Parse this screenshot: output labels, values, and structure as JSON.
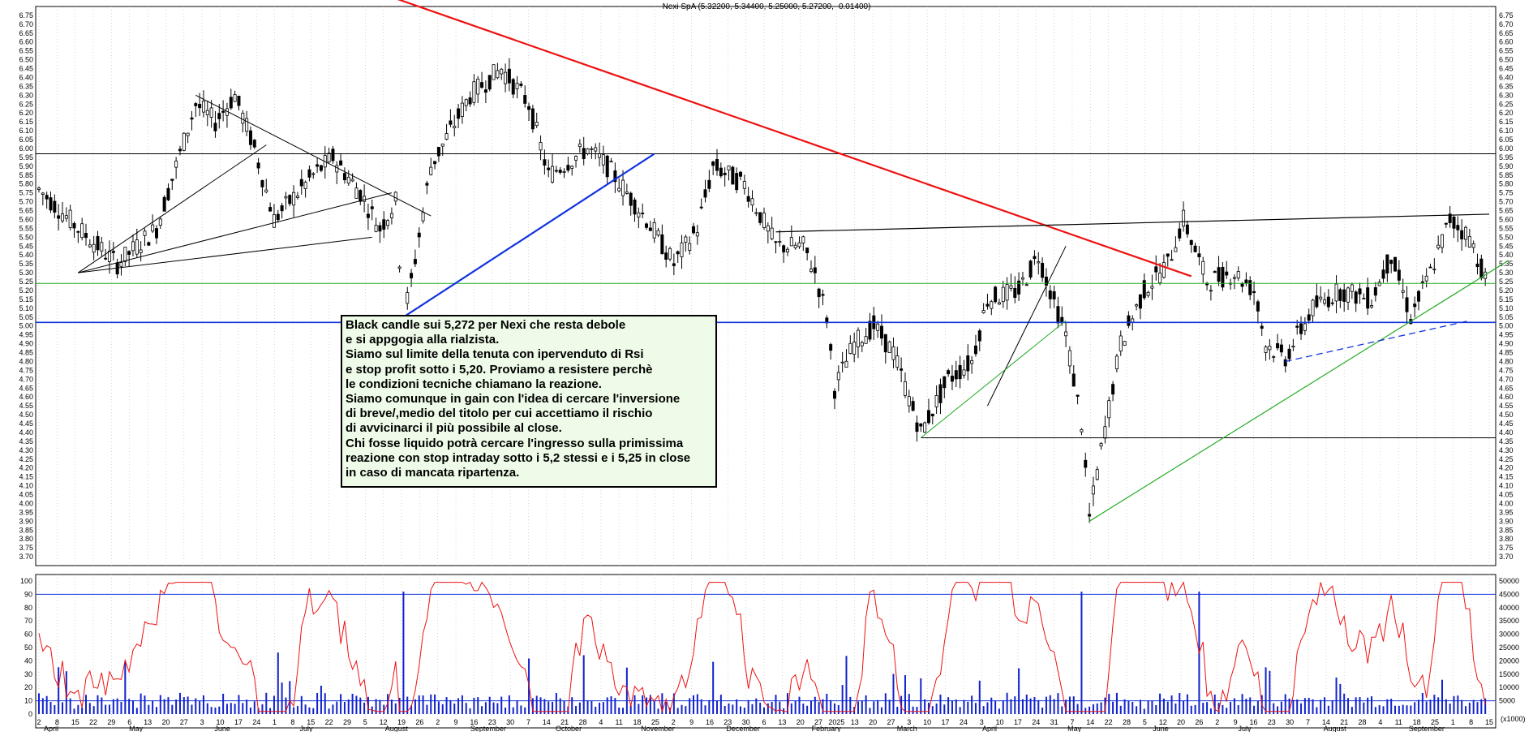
{
  "title": "Nexi SpA (5.32200, 5.34400, 5.25000, 5.27200, -0.01400)",
  "note_text": "Black candle sui 5,272 per Nexi che resta debole\ne si appgogia alla rialzista.\nSiamo sul limite della tenuta con ipervenduto di Rsi\ne stop profit sotto i 5,20. Proviamo a resistere perchè\nle condizioni tecniche chiamano la reazione.\nSiamo comunque in gain con l'idea di cercare l'inversione\ndi breve/,medio del titolo per cui accettiamo il rischio\ndi avvicinarci il più possibile al close.\nChi fosse liquido potrà cercare l'ingresso sulla primissima\nreazione con stop intraday sotto i 5,2 stessi e i 5,25 in close\nin caso di mancata ripartenza.",
  "colors": {
    "up_candle": "#ffffff",
    "down_candle": "#000000",
    "trendline_red": "#ee1111",
    "trendline_blue": "#1133dd",
    "trendline_green": "#22aa22",
    "rsi_line": "#ee1111",
    "volume": "#1122cc",
    "level_blue": "#1133dd",
    "level_green": "#22aa22",
    "grid": "#bbbbbb",
    "note_bg": "#eefbe8"
  },
  "chart_data": [
    {
      "type": "candlestick",
      "title": "Nexi SpA (5.32200, 5.34400, 5.25000, 5.27200, -0.01400)",
      "last_bar": {
        "open": 5.322,
        "high": 5.344,
        "low": 5.25,
        "close": 5.272,
        "change": -0.014
      },
      "ylim": [
        3.65,
        6.8
      ],
      "y_ticks": [
        "3.70",
        "3.75",
        "3.80",
        "3.85",
        "3.90",
        "3.95",
        "4.00",
        "4.05",
        "4.10",
        "4.15",
        "4.20",
        "4.25",
        "4.30",
        "4.35",
        "4.40",
        "4.45",
        "4.50",
        "4.55",
        "4.60",
        "4.65",
        "4.70",
        "4.75",
        "4.80",
        "4.85",
        "4.90",
        "4.95",
        "5.00",
        "5.05",
        "5.10",
        "5.15",
        "5.20",
        "5.25",
        "5.30",
        "5.35",
        "5.40",
        "5.45",
        "5.50",
        "5.55",
        "5.60",
        "5.65",
        "5.70",
        "5.75",
        "5.80",
        "5.85",
        "5.90",
        "5.95",
        "6.00",
        "6.05",
        "6.10",
        "6.15",
        "6.20",
        "6.25",
        "6.30",
        "6.35",
        "6.40",
        "6.45",
        "6.50",
        "6.55",
        "6.60",
        "6.65",
        "6.70",
        "6.75"
      ],
      "x_tick_labels": [
        "2",
        "8",
        "15",
        "22",
        "29",
        "6",
        "13",
        "20",
        "27",
        "3",
        "10",
        "17",
        "24",
        "1",
        "8",
        "15",
        "22",
        "29",
        "5",
        "12",
        "19",
        "26",
        "2",
        "9",
        "16",
        "23",
        "30",
        "7",
        "14",
        "21",
        "28",
        "4",
        "11",
        "18",
        "25",
        "2",
        "9",
        "16",
        "23",
        "30",
        "6",
        "13",
        "20",
        "27",
        "2025",
        "13",
        "20",
        "27",
        "3",
        "10",
        "17",
        "24",
        "3",
        "10",
        "17",
        "24",
        "31",
        "7",
        "14",
        "22",
        "28",
        "5",
        "12",
        "20",
        "26",
        "2",
        "9",
        "16",
        "23",
        "30",
        "7",
        "14",
        "21",
        "28",
        "4",
        "11",
        "18",
        "25",
        "1",
        "8",
        "15"
      ],
      "month_labels": [
        "April",
        "May",
        "June",
        "July",
        "August",
        "September",
        "October",
        "November",
        "December",
        "February",
        "March",
        "April",
        "May",
        "June",
        "July",
        "August",
        "September"
      ],
      "close_path": [
        {
          "x": 0,
          "y": 5.77
        },
        {
          "x": 10,
          "y": 5.55
        },
        {
          "x": 20,
          "y": 5.35
        },
        {
          "x": 30,
          "y": 5.55
        },
        {
          "x": 40,
          "y": 6.25
        },
        {
          "x": 45,
          "y": 6.15
        },
        {
          "x": 50,
          "y": 6.3
        },
        {
          "x": 55,
          "y": 6.0
        },
        {
          "x": 60,
          "y": 5.6
        },
        {
          "x": 70,
          "y": 5.85
        },
        {
          "x": 75,
          "y": 5.95
        },
        {
          "x": 82,
          "y": 5.75
        },
        {
          "x": 87,
          "y": 5.55
        },
        {
          "x": 91,
          "y": 5.7
        },
        {
          "x": 93,
          "y": 5.05
        },
        {
          "x": 95,
          "y": 5.25
        },
        {
          "x": 100,
          "y": 5.9
        },
        {
          "x": 110,
          "y": 6.3
        },
        {
          "x": 118,
          "y": 6.45
        },
        {
          "x": 125,
          "y": 6.25
        },
        {
          "x": 130,
          "y": 5.85
        },
        {
          "x": 140,
          "y": 6.0
        },
        {
          "x": 145,
          "y": 5.9
        },
        {
          "x": 155,
          "y": 5.6
        },
        {
          "x": 162,
          "y": 5.35
        },
        {
          "x": 168,
          "y": 5.55
        },
        {
          "x": 172,
          "y": 5.9
        },
        {
          "x": 180,
          "y": 5.8
        },
        {
          "x": 188,
          "y": 5.45
        },
        {
          "x": 195,
          "y": 5.45
        },
        {
          "x": 198,
          "y": 5.3
        },
        {
          "x": 201,
          "y": 5.05
        },
        {
          "x": 203,
          "y": 4.65
        },
        {
          "x": 208,
          "y": 4.9
        },
        {
          "x": 213,
          "y": 5.0
        },
        {
          "x": 218,
          "y": 4.85
        },
        {
          "x": 225,
          "y": 4.4
        },
        {
          "x": 232,
          "y": 4.7
        },
        {
          "x": 238,
          "y": 4.8
        },
        {
          "x": 242,
          "y": 5.15
        },
        {
          "x": 250,
          "y": 5.2
        },
        {
          "x": 255,
          "y": 5.4
        },
        {
          "x": 258,
          "y": 5.2
        },
        {
          "x": 262,
          "y": 4.95
        },
        {
          "x": 266,
          "y": 4.45
        },
        {
          "x": 268,
          "y": 3.92
        },
        {
          "x": 271,
          "y": 4.3
        },
        {
          "x": 276,
          "y": 4.9
        },
        {
          "x": 282,
          "y": 5.2
        },
        {
          "x": 288,
          "y": 5.35
        },
        {
          "x": 292,
          "y": 5.6
        },
        {
          "x": 298,
          "y": 5.25
        },
        {
          "x": 305,
          "y": 5.3
        },
        {
          "x": 310,
          "y": 5.2
        },
        {
          "x": 313,
          "y": 4.9
        },
        {
          "x": 318,
          "y": 4.82
        },
        {
          "x": 325,
          "y": 5.1
        },
        {
          "x": 332,
          "y": 5.2
        },
        {
          "x": 340,
          "y": 5.15
        },
        {
          "x": 345,
          "y": 5.4
        },
        {
          "x": 350,
          "y": 5.05
        },
        {
          "x": 355,
          "y": 5.3
        },
        {
          "x": 360,
          "y": 5.6
        },
        {
          "x": 365,
          "y": 5.5
        },
        {
          "x": 369,
          "y": 5.27
        }
      ],
      "trendlines": [
        {
          "name": "red-downtrend",
          "color": "red",
          "points": [
            [
              45,
              7.2
            ],
            [
              294,
              5.28
            ]
          ]
        },
        {
          "name": "blue-uptrend",
          "color": "blue",
          "points": [
            [
              93,
              5.05
            ],
            [
              157,
              5.97
            ]
          ]
        },
        {
          "name": "green-uptrend",
          "color": "green",
          "points": [
            [
              268,
              3.9
            ],
            [
              375,
              5.37
            ]
          ]
        },
        {
          "name": "upper-resistance",
          "color": "black",
          "points": [
            [
              188,
              5.53
            ],
            [
              370,
              5.63
            ]
          ]
        }
      ],
      "horizontal_levels": [
        5.97,
        5.24,
        5.02,
        4.37
      ]
    },
    {
      "type": "line",
      "name": "RSI",
      "ylim": [
        0,
        100
      ],
      "y_ticks": [
        0,
        10,
        20,
        30,
        40,
        50,
        60,
        70,
        80,
        90,
        100
      ],
      "overbought": 90,
      "oversold": 10,
      "last_value": 7
    },
    {
      "type": "bar",
      "name": "Volume",
      "ylim": [
        0,
        50000
      ],
      "y_ticks": [
        "5000",
        "10000",
        "15000",
        "20000",
        "25000",
        "30000",
        "35000",
        "40000",
        "45000",
        "50000"
      ],
      "unit_label": "(x1000)"
    }
  ]
}
